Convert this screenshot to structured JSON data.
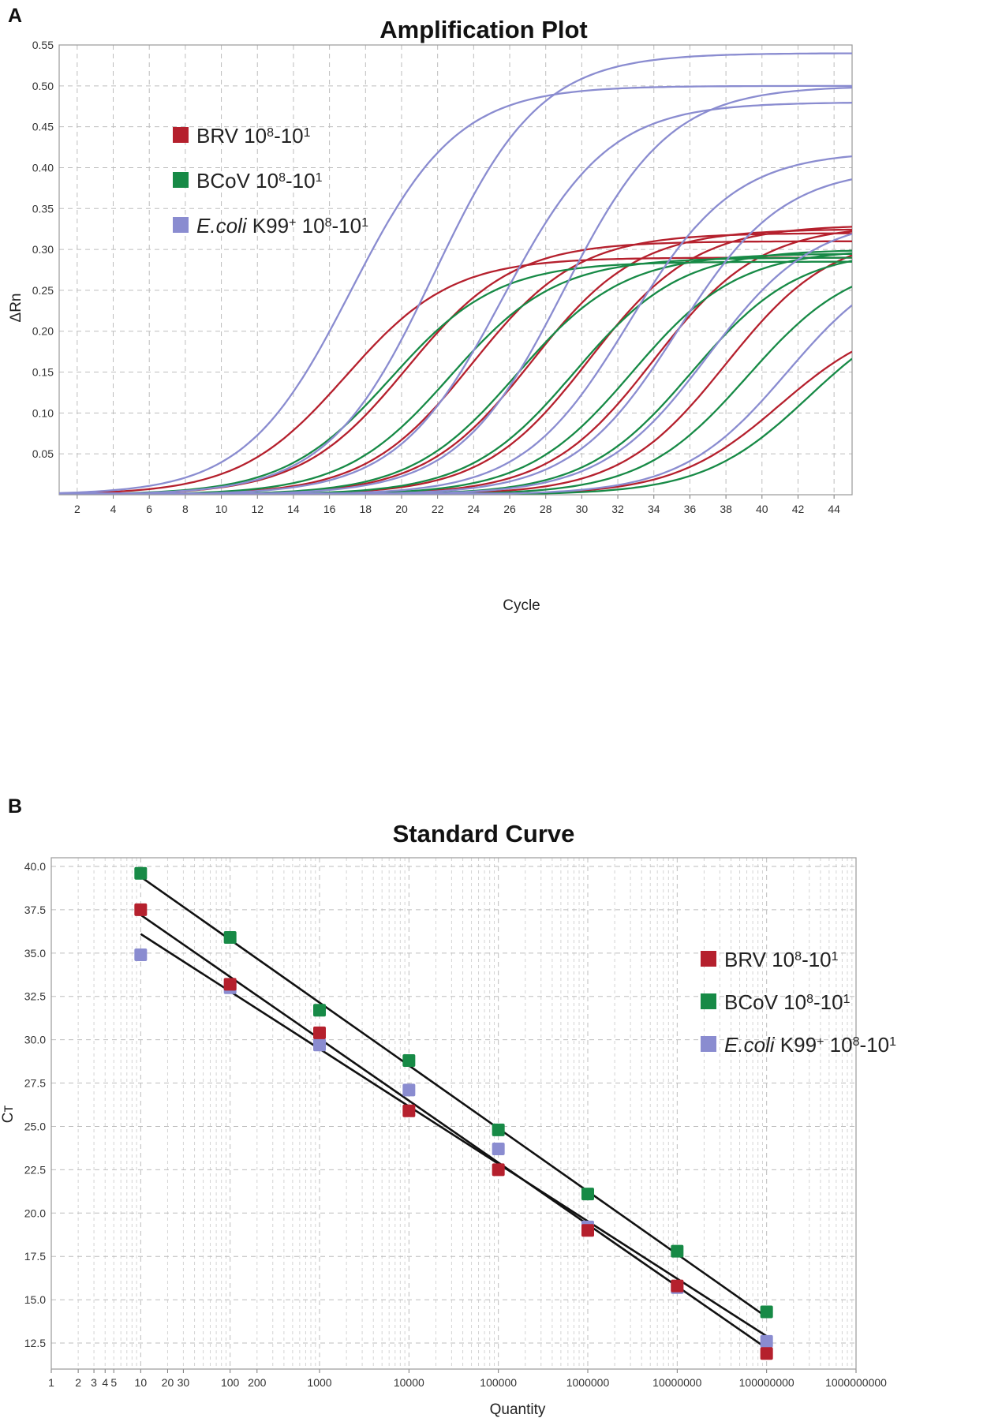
{
  "figure": {
    "panel_a_label": "A",
    "panel_b_label": "B"
  },
  "legend": {
    "items": [
      {
        "name": "BRV",
        "range_prefix": " 10",
        "sup1": "8",
        "range_mid": "-10",
        "sup2": "1",
        "italic": false,
        "color": "#b5202d"
      },
      {
        "name": "BCoV",
        "range_prefix": " 10",
        "sup1": "8",
        "range_mid": "-10",
        "sup2": "1",
        "italic": false,
        "color": "#178a46"
      },
      {
        "name": "E.coli",
        "name_suffix": " K99",
        "name_sup": "+",
        "range_prefix": " 10",
        "sup1": "8",
        "range_mid": "-10",
        "sup2": "1",
        "italic": true,
        "color": "#8a8cd0"
      }
    ]
  },
  "colors": {
    "brv": "#b5202d",
    "bcov": "#178a46",
    "ecoli": "#8a8cd0",
    "fit_line": "#111111"
  },
  "chart_data": [
    {
      "type": "line",
      "title": "Amplification Plot",
      "xlabel": "Cycle",
      "ylabel": "ΔRn",
      "xlim": [
        1,
        45
      ],
      "ylim": [
        0,
        0.55
      ],
      "x_ticks": [
        2,
        4,
        6,
        8,
        10,
        12,
        14,
        16,
        18,
        20,
        22,
        24,
        26,
        28,
        30,
        32,
        34,
        36,
        38,
        40,
        42,
        44
      ],
      "y_ticks": [
        "0.05",
        "0.10",
        "0.15",
        "0.20",
        "0.25",
        "0.30",
        "0.35",
        "0.40",
        "0.45",
        "0.50",
        "0.55"
      ],
      "grid": true,
      "legend_position": "top-left",
      "series": [
        {
          "name": "BRV 10^8-10^1",
          "ct": [
            14.5,
            17.9,
            21.5,
            24.8,
            28.0,
            31.6,
            35.6,
            38.6
          ],
          "plateau": [
            0.29,
            0.31,
            0.32,
            0.325,
            0.33,
            0.33,
            0.32,
            0.22
          ]
        },
        {
          "name": "BCoV 10^8-10^1",
          "ct": [
            17.0,
            20.3,
            24.0,
            27.2,
            30.4,
            33.7,
            36.8,
            40.2
          ],
          "plateau": [
            0.285,
            0.29,
            0.295,
            0.3,
            0.3,
            0.3,
            0.29,
            0.24
          ]
        },
        {
          "name": "E.coli K99+ 10^8-10^1",
          "ct": [
            14.8,
            19.4,
            23.2,
            26.6,
            30.2,
            32.9,
            34.6,
            39.0
          ],
          "plateau": [
            0.5,
            0.54,
            0.48,
            0.5,
            0.42,
            0.4,
            0.34,
            0.3
          ]
        }
      ]
    },
    {
      "type": "scatter",
      "title": "Standard Curve",
      "xlabel": "Quantity",
      "ylabel": "Cт",
      "x_scale": "log",
      "xlim": [
        1,
        1000000000
      ],
      "ylim": [
        11.0,
        40.5
      ],
      "x_tick_labels": [
        {
          "value": 1,
          "label": "1"
        },
        {
          "value": 2,
          "label": "2"
        },
        {
          "value": 3,
          "label": "3"
        },
        {
          "value": 4,
          "label": "4"
        },
        {
          "value": 5,
          "label": "5"
        },
        {
          "value": 10,
          "label": "10"
        },
        {
          "value": 20,
          "label": "20"
        },
        {
          "value": 30,
          "label": "30"
        },
        {
          "value": 100,
          "label": "100"
        },
        {
          "value": 200,
          "label": "200"
        },
        {
          "value": 1000,
          "label": "1000"
        },
        {
          "value": 10000,
          "label": "10000"
        },
        {
          "value": 100000,
          "label": "100000"
        },
        {
          "value": 1000000,
          "label": "1000000"
        },
        {
          "value": 10000000,
          "label": "10000000"
        },
        {
          "value": 100000000,
          "label": "100000000"
        },
        {
          "value": 1000000000,
          "label": "1000000000"
        }
      ],
      "y_ticks": [
        "12.5",
        "15.0",
        "17.5",
        "20.0",
        "22.5",
        "25.0",
        "27.5",
        "30.0",
        "32.5",
        "35.0",
        "37.5",
        "40.0"
      ],
      "grid": true,
      "legend_position": "right",
      "x": [
        10,
        100,
        1000,
        10000,
        100000,
        1000000,
        10000000,
        100000000
      ],
      "series": [
        {
          "name": "BRV 10^8-10^1",
          "values": [
            37.5,
            33.2,
            30.4,
            25.9,
            22.5,
            19.0,
            15.8,
            11.9
          ],
          "fit": [
            37.2,
            12.2
          ]
        },
        {
          "name": "BCoV 10^8-10^1",
          "values": [
            39.6,
            35.9,
            31.7,
            28.8,
            24.8,
            21.1,
            17.8,
            14.3
          ],
          "fit": [
            39.4,
            14.0
          ]
        },
        {
          "name": "E.coli K99+ 10^8-10^1",
          "values": [
            34.9,
            33.0,
            29.7,
            27.1,
            23.7,
            19.2,
            15.7,
            12.6
          ],
          "fit": [
            36.1,
            12.9
          ]
        }
      ]
    }
  ]
}
